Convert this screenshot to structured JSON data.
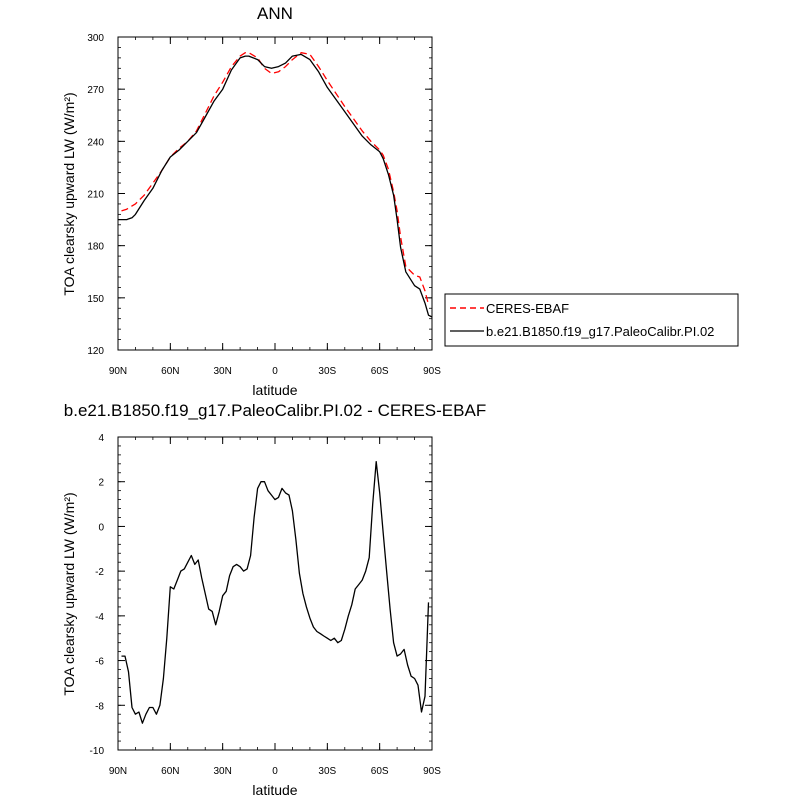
{
  "chart_data": [
    {
      "type": "line",
      "title": "ANN",
      "xlabel": "latitude",
      "ylabel": "TOA clearsky upward LW (W/m²)",
      "xlim": [
        90,
        -90
      ],
      "ylim": [
        120,
        300
      ],
      "x_ticks": [
        90,
        60,
        30,
        0,
        -30,
        -60,
        -90
      ],
      "x_tick_labels": [
        "90N",
        "60N",
        "30N",
        "0",
        "30S",
        "60S",
        "90S"
      ],
      "y_ticks": [
        120,
        150,
        180,
        210,
        240,
        270,
        300
      ],
      "y_tick_labels": [
        "120",
        "150",
        "180",
        "210",
        "240",
        "270",
        "300"
      ],
      "grid": false,
      "legend": {
        "placement": "right",
        "entries": [
          "CERES-EBAF",
          "b.e21.B1850.f19_g17.PaleoCalibr.PI.02"
        ]
      },
      "series": [
        {
          "name": "CERES-EBAF",
          "color": "#ff0000",
          "dash": "dashed",
          "x": [
            88,
            85,
            80,
            75,
            70,
            65,
            60,
            55,
            50,
            45,
            40,
            35,
            30,
            25,
            20,
            17,
            15,
            10,
            6,
            2,
            -2,
            -6,
            -10,
            -15,
            -20,
            -25,
            -30,
            -40,
            -50,
            -55,
            -60,
            -62,
            -65,
            -68,
            -70,
            -72,
            -75,
            -80,
            -83,
            -86,
            -88
          ],
          "y": [
            200,
            201,
            204,
            209,
            216,
            223,
            231,
            236,
            240,
            246,
            256,
            266,
            274,
            283,
            289,
            291,
            291,
            288,
            282,
            279,
            280,
            283,
            287,
            291,
            290,
            283,
            275,
            260,
            246,
            240,
            235,
            232,
            224,
            211,
            200,
            185,
            168,
            163,
            162,
            154,
            146
          ]
        },
        {
          "name": "b.e21.B1850.f19_g17.PaleoCalibr.PI.02",
          "color": "#000000",
          "dash": "solid",
          "x": [
            90,
            88,
            85,
            82,
            80,
            75,
            70,
            65,
            60,
            55,
            50,
            45,
            40,
            35,
            30,
            25,
            20,
            17,
            15,
            10,
            6,
            2,
            -2,
            -6,
            -10,
            -15,
            -20,
            -25,
            -30,
            -40,
            -50,
            -55,
            -60,
            -62,
            -65,
            -68,
            -70,
            -72,
            -75,
            -80,
            -83,
            -86,
            -88,
            -90
          ],
          "y": [
            195,
            195,
            195,
            196,
            198,
            206,
            213,
            223,
            231,
            235,
            240,
            245,
            254,
            263,
            270,
            281,
            288,
            289,
            289,
            287,
            283,
            282,
            283,
            285,
            289,
            290,
            287,
            280,
            271,
            257,
            243,
            238,
            234,
            230,
            221,
            209,
            195,
            179,
            165,
            157,
            155,
            147,
            140,
            139
          ]
        }
      ]
    },
    {
      "type": "line",
      "title": "b.e21.B1850.f19_g17.PaleoCalibr.PI.02 - CERES-EBAF",
      "xlabel": "latitude",
      "ylabel": "TOA clearsky upward LW (W/m²)",
      "xlim": [
        90,
        -90
      ],
      "ylim": [
        -10,
        4
      ],
      "x_ticks": [
        90,
        60,
        30,
        0,
        -30,
        -60,
        -90
      ],
      "x_tick_labels": [
        "90N",
        "60N",
        "30N",
        "0",
        "30S",
        "60S",
        "90S"
      ],
      "y_ticks": [
        -10,
        -8,
        -6,
        -4,
        -2,
        0,
        2,
        4
      ],
      "y_tick_labels": [
        "-10",
        "-8",
        "-6",
        "-4",
        "-2",
        "0",
        "2",
        "4"
      ],
      "grid": false,
      "series": [
        {
          "color": "#000000",
          "dash": "solid",
          "x": [
            88,
            86,
            84,
            82,
            80,
            78,
            76,
            74,
            72,
            70,
            68,
            66,
            64,
            62,
            60,
            58,
            56,
            54,
            52,
            50,
            48,
            46,
            44,
            42,
            40,
            38,
            36,
            34,
            32,
            30,
            28,
            26,
            24,
            22,
            20,
            18,
            16,
            14,
            12,
            10,
            8,
            6,
            4,
            2,
            0,
            -2,
            -4,
            -6,
            -8,
            -10,
            -12,
            -14,
            -16,
            -18,
            -20,
            -22,
            -24,
            -26,
            -28,
            -30,
            -32,
            -34,
            -36,
            -38,
            -40,
            -42,
            -44,
            -46,
            -48,
            -50,
            -52,
            -54,
            -56,
            -58,
            -60,
            -62,
            -64,
            -66,
            -68,
            -70,
            -72,
            -74,
            -76,
            -78,
            -80,
            -82,
            -84,
            -86,
            -88
          ],
          "y": [
            -5.8,
            -5.8,
            -6.5,
            -8.1,
            -8.4,
            -8.3,
            -8.8,
            -8.4,
            -8.1,
            -8.1,
            -8.4,
            -8.0,
            -6.8,
            -5.0,
            -2.7,
            -2.8,
            -2.4,
            -2.0,
            -1.9,
            -1.6,
            -1.3,
            -1.7,
            -1.5,
            -2.3,
            -3.0,
            -3.7,
            -3.8,
            -4.4,
            -3.8,
            -3.1,
            -2.9,
            -2.2,
            -1.8,
            -1.7,
            -1.8,
            -2.0,
            -1.9,
            -1.3,
            0.4,
            1.7,
            2.0,
            2.0,
            1.6,
            1.4,
            1.2,
            1.3,
            1.7,
            1.5,
            1.4,
            0.7,
            -0.6,
            -2.1,
            -3.0,
            -3.6,
            -4.1,
            -4.5,
            -4.7,
            -4.8,
            -4.9,
            -5.0,
            -5.1,
            -5.0,
            -5.2,
            -5.1,
            -4.6,
            -4.0,
            -3.5,
            -2.8,
            -2.6,
            -2.4,
            -2.0,
            -1.4,
            1.0,
            2.9,
            1.5,
            -0.3,
            -2.0,
            -3.7,
            -5.2,
            -5.8,
            -5.7,
            -5.5,
            -6.2,
            -6.7,
            -6.8,
            -7.1,
            -8.3,
            -7.6,
            -3.4
          ]
        }
      ]
    }
  ]
}
